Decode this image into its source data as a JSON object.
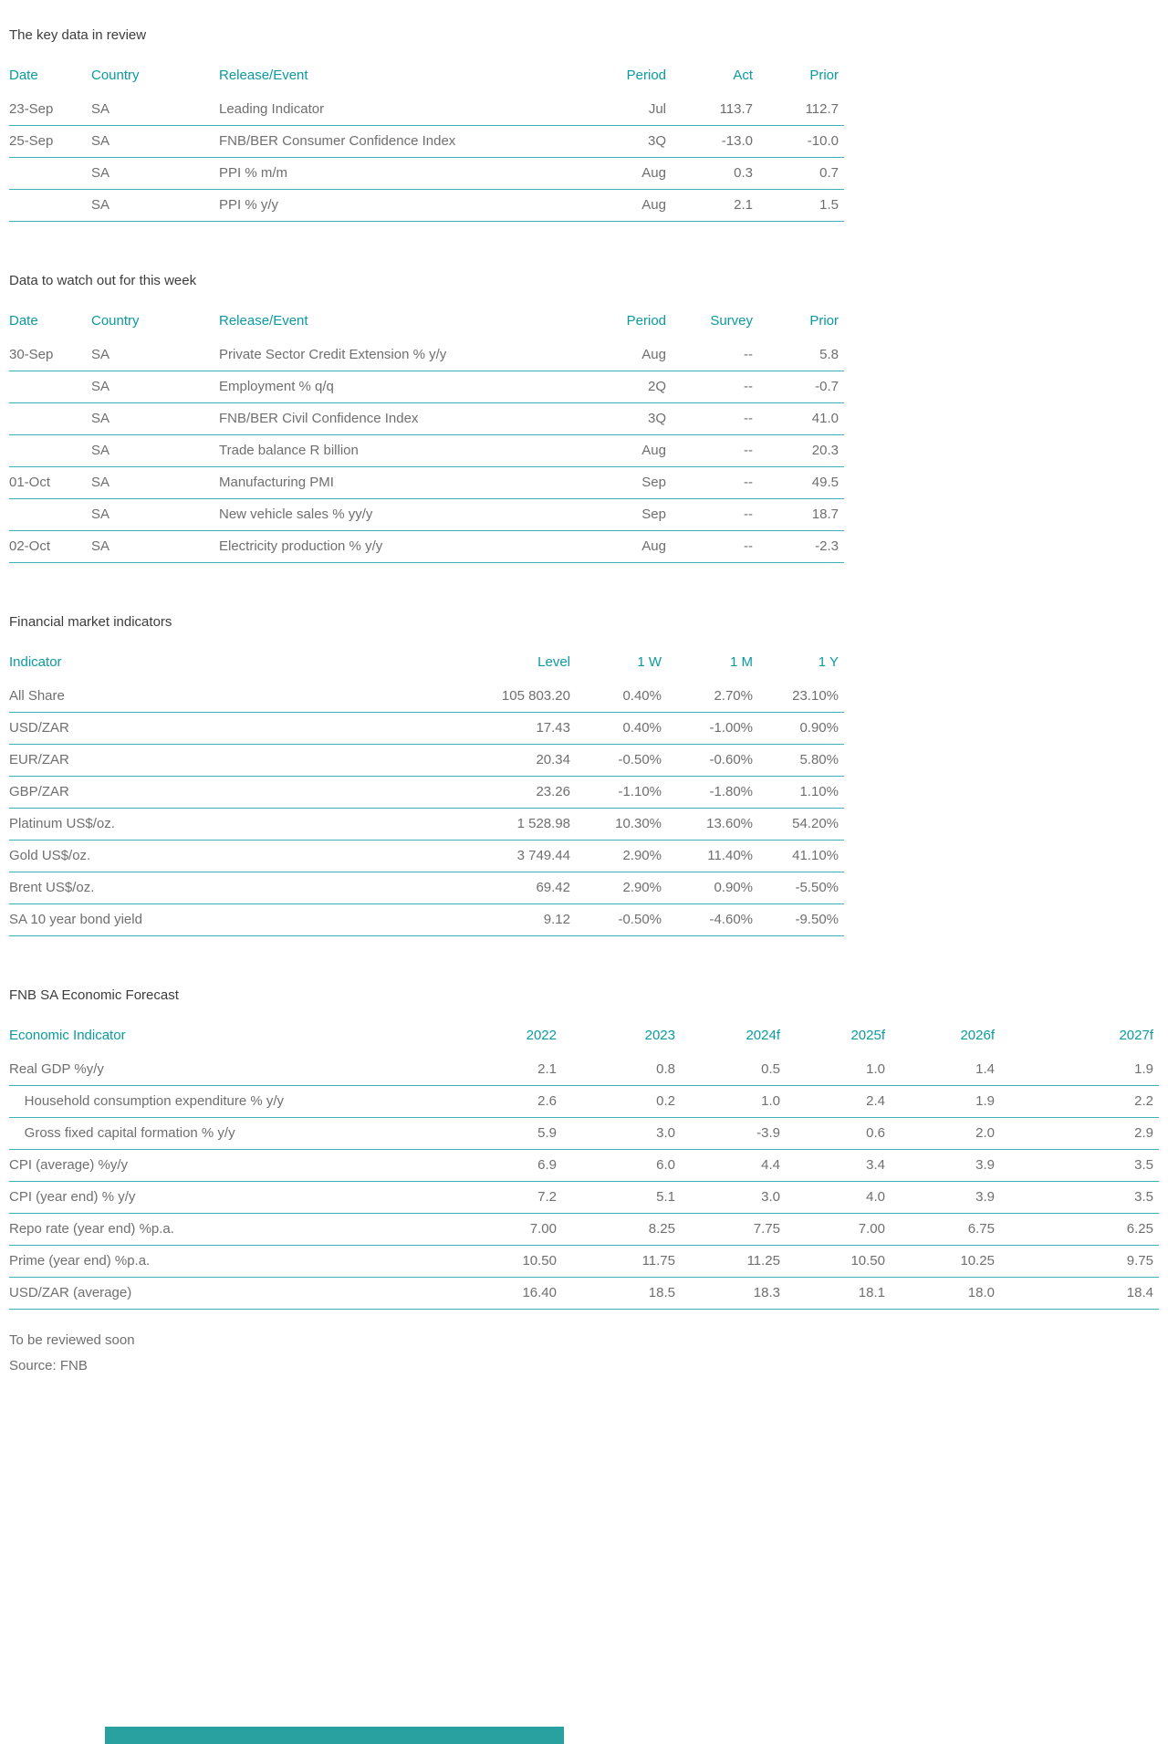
{
  "accent_color": "#0a9a9f",
  "divider_color": "#3db1b5",
  "band_color": "#2aa1a1",
  "sections": [
    {
      "title": "The key data in review",
      "columns": [
        "Date",
        "Country",
        "Release/Event",
        "Period",
        "Act",
        "Prior"
      ],
      "rows": [
        [
          "23-Sep",
          "SA",
          "Leading Indicator",
          "Jul",
          "113.7",
          "112.7"
        ],
        [
          "25-Sep",
          "SA",
          "FNB/BER Consumer Confidence Index",
          "3Q",
          "-13.0",
          "-10.0"
        ],
        [
          "",
          "SA",
          "PPI % m/m",
          "Aug",
          "0.3",
          "0.7"
        ],
        [
          "",
          "SA",
          "PPI % y/y",
          "Aug",
          "2.1",
          "1.5"
        ]
      ]
    },
    {
      "title": "Data to watch out for this week",
      "columns": [
        "Date",
        "Country",
        "Release/Event",
        "Period",
        "Survey",
        "Prior"
      ],
      "rows": [
        [
          "30-Sep",
          "SA",
          "Private Sector Credit Extension % y/y",
          "Aug",
          "--",
          "5.8"
        ],
        [
          "",
          "SA",
          "Employment % q/q",
          "2Q",
          "--",
          "-0.7"
        ],
        [
          "",
          "SA",
          "FNB/BER Civil Confidence Index",
          "3Q",
          "--",
          "41.0"
        ],
        [
          "",
          "SA",
          "Trade balance R billion",
          "Aug",
          "--",
          "20.3"
        ],
        [
          "01-Oct",
          "SA",
          "Manufacturing PMI",
          "Sep",
          "--",
          "49.5"
        ],
        [
          "",
          "SA",
          "New vehicle sales % yy/y",
          "Sep",
          "--",
          "18.7"
        ],
        [
          "02-Oct",
          "SA",
          "Electricity production % y/y",
          "Aug",
          "--",
          "-2.3"
        ]
      ]
    },
    {
      "title": "Financial market indicators",
      "columns": [
        "Indicator",
        "Level",
        "1 W",
        "1 M",
        "1 Y"
      ],
      "rows": [
        [
          "All Share",
          "105 803.20",
          "0.40%",
          "2.70%",
          "23.10%"
        ],
        [
          "USD/ZAR",
          "17.43",
          "0.40%",
          "-1.00%",
          "0.90%"
        ],
        [
          "EUR/ZAR",
          "20.34",
          "-0.50%",
          "-0.60%",
          "5.80%"
        ],
        [
          "GBP/ZAR",
          "23.26",
          "-1.10%",
          "-1.80%",
          "1.10%"
        ],
        [
          "Platinum US$/oz.",
          "1 528.98",
          "10.30%",
          "13.60%",
          "54.20%"
        ],
        [
          "Gold US$/oz.",
          "3 749.44",
          "2.90%",
          "11.40%",
          "41.10%"
        ],
        [
          "Brent US$/oz.",
          "69.42",
          "2.90%",
          "0.90%",
          "-5.50%"
        ],
        [
          "SA 10 year bond yield",
          "9.12",
          "-0.50%",
          "-4.60%",
          "-9.50%"
        ]
      ]
    },
    {
      "title": "FNB SA Economic Forecast",
      "columns": [
        "Economic Indicator",
        "2022",
        "2023",
        "2024f",
        "2025f",
        "2026f",
        "2027f"
      ],
      "rows": [
        [
          "Real GDP %y/y",
          "2.1",
          "0.8",
          "0.5",
          "1.0",
          "1.4",
          "1.9"
        ],
        [
          "    Household consumption expenditure % y/y",
          "2.6",
          "0.2",
          "1.0",
          "2.4",
          "1.9",
          "2.2"
        ],
        [
          "    Gross fixed capital formation % y/y",
          "5.9",
          "3.0",
          "-3.9",
          "0.6",
          "2.0",
          "2.9"
        ],
        [
          "CPI (average) %y/y",
          "6.9",
          "6.0",
          "4.4",
          "3.4",
          "3.9",
          "3.5"
        ],
        [
          "CPI (year end) % y/y",
          "7.2",
          "5.1",
          "3.0",
          "4.0",
          "3.9",
          "3.5"
        ],
        [
          "Repo rate (year end) %p.a.",
          "7.00",
          "8.25",
          "7.75",
          "7.00",
          "6.75",
          "6.25"
        ],
        [
          "Prime (year end) %p.a.",
          "10.50",
          "11.75",
          "11.25",
          "10.50",
          "10.25",
          "9.75"
        ],
        [
          "USD/ZAR (average)",
          "16.40",
          "18.5",
          "18.3",
          "18.1",
          "18.0",
          "18.4"
        ]
      ]
    }
  ],
  "footer": {
    "line1": "To be reviewed soon",
    "line2": "Source: FNB"
  }
}
